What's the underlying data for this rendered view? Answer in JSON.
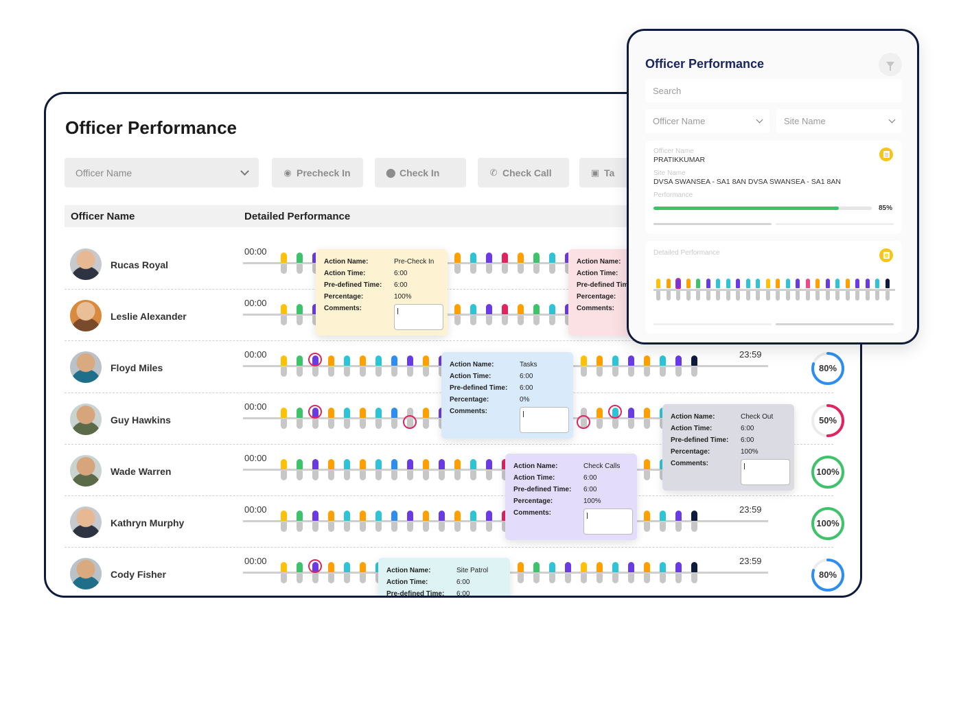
{
  "main": {
    "title": "Officer Performance",
    "officer_select_placeholder": "Officer Name",
    "filter_buttons": [
      {
        "label": "Precheck In",
        "icon": "fingerprint-icon"
      },
      {
        "label": "Check In",
        "icon": "location-pin-icon"
      },
      {
        "label": "Check Call",
        "icon": "phone-icon"
      },
      {
        "label": "Ta",
        "icon": "task-icon"
      }
    ],
    "table_headers": {
      "officer": "Officer Name",
      "detail": "Detailed Performance"
    },
    "time_start": "00:00",
    "time_end": "23:59",
    "rows": [
      {
        "name": "Rucas Royal",
        "percent": "",
        "progress": 0
      },
      {
        "name": "Leslie Alexander",
        "percent": "",
        "progress": 0
      },
      {
        "name": "Floyd Miles",
        "percent": "80%",
        "progress": 0.8
      },
      {
        "name": "Guy Hawkins",
        "percent": "50%",
        "progress": 0.5
      },
      {
        "name": "Wade Warren",
        "percent": "100%",
        "progress": 1.0
      },
      {
        "name": "Kathryn Murphy",
        "percent": "100%",
        "progress": 1.0
      },
      {
        "name": "Cody Fisher",
        "percent": "80%",
        "progress": 0.8
      }
    ],
    "tooltip_labels": {
      "action_name": "Action Name:",
      "action_time": "Action Time:",
      "predefined_time": "Pre-defined Time:",
      "percentage": "Percentage:",
      "comments": "Comments:"
    },
    "tooltips": [
      {
        "action": "Pre-Check In",
        "time": "6:00",
        "predefined": "6:00",
        "percent": "100%"
      },
      {
        "action": "",
        "time": "",
        "predefined": "",
        "percent": ""
      },
      {
        "action": "Tasks",
        "time": "6:00",
        "predefined": "6:00",
        "percent": "0%"
      },
      {
        "action": "Check Out",
        "time": "6:00",
        "predefined": "6:00",
        "percent": "100%"
      },
      {
        "action": "Check Calls",
        "time": "6:00",
        "predefined": "6:00",
        "percent": "100%"
      },
      {
        "action": "Site Patrol",
        "time": "6:00",
        "predefined": "6:00",
        "percent": ""
      }
    ],
    "second_tip_truncated_label": "Pre-defined Tim",
    "colors": {
      "yellow": "#ffc107",
      "green": "#3ec26a",
      "purple": "#6a3be4",
      "orange": "#ffa000",
      "teal": "#2ec4d6",
      "red": "#e0245e",
      "blue": "#2e8ef0",
      "navy": "#0f1b3d",
      "pink": "#e84a8a"
    }
  },
  "panel": {
    "title": "Officer Performance",
    "search_placeholder": "Search",
    "officer_select": "Officer Name",
    "site_select": "Site Name",
    "officer_label": "Officer Name",
    "officer_value": "PRATIKKUMAR",
    "site_label": "Site Name",
    "site_value": "DVSA SWANSEA - SA1 8AN DVSA SWANSEA - SA1 8AN",
    "performance_label": "Performance",
    "performance_percent": "85%",
    "performance_progress": 0.85,
    "detail_label": "Detailed Performance"
  }
}
